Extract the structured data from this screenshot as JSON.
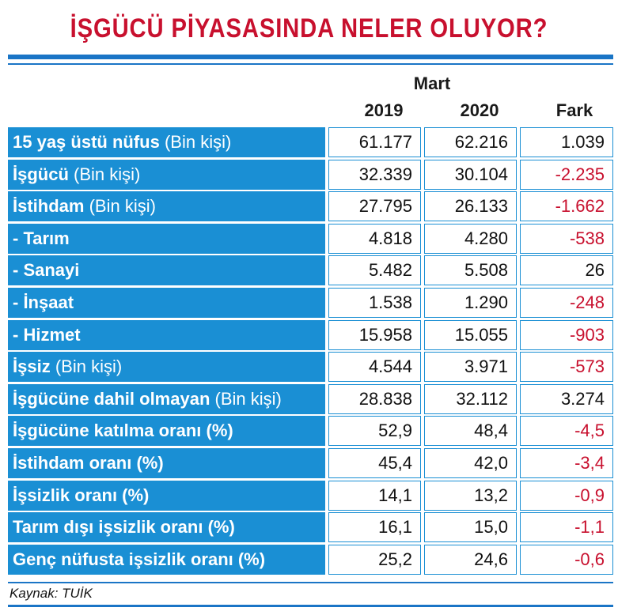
{
  "title": "İŞGÜCÜ PİYASASINDA NELER OLUYOR?",
  "source": "Kaynak: TUİK",
  "colors": {
    "title": "#c8102e",
    "accent": "#1a8fd4",
    "rule": "#1a75c6",
    "negative": "#c8102e",
    "positive": "#111111"
  },
  "chart_data": {
    "type": "table",
    "title": "İŞGÜCÜ PİYASASINDA NELER OLUYOR?",
    "group_header": "Mart",
    "columns": [
      "2019",
      "2020",
      "Fark"
    ],
    "rows": [
      {
        "label": "15 yaş üstü nüfus",
        "unit": "(Bin kişi)",
        "values": [
          "61.177",
          "62.216",
          "1.039"
        ],
        "negative": false
      },
      {
        "label": "İşgücü",
        "unit": "(Bin kişi)",
        "values": [
          "32.339",
          "30.104",
          "-2.235"
        ],
        "negative": true
      },
      {
        "label": "İstihdam",
        "unit": "(Bin kişi)",
        "values": [
          "27.795",
          "26.133",
          "-1.662"
        ],
        "negative": true
      },
      {
        "label": "- Tarım",
        "unit": "",
        "values": [
          "4.818",
          "4.280",
          "-538"
        ],
        "negative": true
      },
      {
        "label": "- Sanayi",
        "unit": "",
        "values": [
          "5.482",
          "5.508",
          "26"
        ],
        "negative": false
      },
      {
        "label": "- İnşaat",
        "unit": "",
        "values": [
          "1.538",
          "1.290",
          "-248"
        ],
        "negative": true
      },
      {
        "label": "- Hizmet",
        "unit": "",
        "values": [
          "15.958",
          "15.055",
          "-903"
        ],
        "negative": true
      },
      {
        "label": "İşsiz",
        "unit": "(Bin kişi)",
        "values": [
          "4.544",
          "3.971",
          "-573"
        ],
        "negative": true
      },
      {
        "label": "İşgücüne dahil olmayan",
        "unit": "(Bin kişi)",
        "values": [
          "28.838",
          "32.112",
          "3.274"
        ],
        "negative": false
      },
      {
        "label": "İşgücüne katılma oranı (%)",
        "unit": "",
        "values": [
          "52,9",
          "48,4",
          "-4,5"
        ],
        "negative": true
      },
      {
        "label": "İstihdam oranı (%)",
        "unit": "",
        "values": [
          "45,4",
          "42,0",
          "-3,4"
        ],
        "negative": true
      },
      {
        "label": "İşsizlik oranı (%)",
        "unit": "",
        "values": [
          "14,1",
          "13,2",
          "-0,9"
        ],
        "negative": true
      },
      {
        "label": "Tarım dışı işsizlik oranı (%)",
        "unit": "",
        "values": [
          "16,1",
          "15,0",
          "-1,1"
        ],
        "negative": true
      },
      {
        "label": "Genç nüfusta işsizlik oranı (%)",
        "unit": "",
        "values": [
          "25,2",
          "24,6",
          "-0,6"
        ],
        "negative": true
      }
    ]
  }
}
